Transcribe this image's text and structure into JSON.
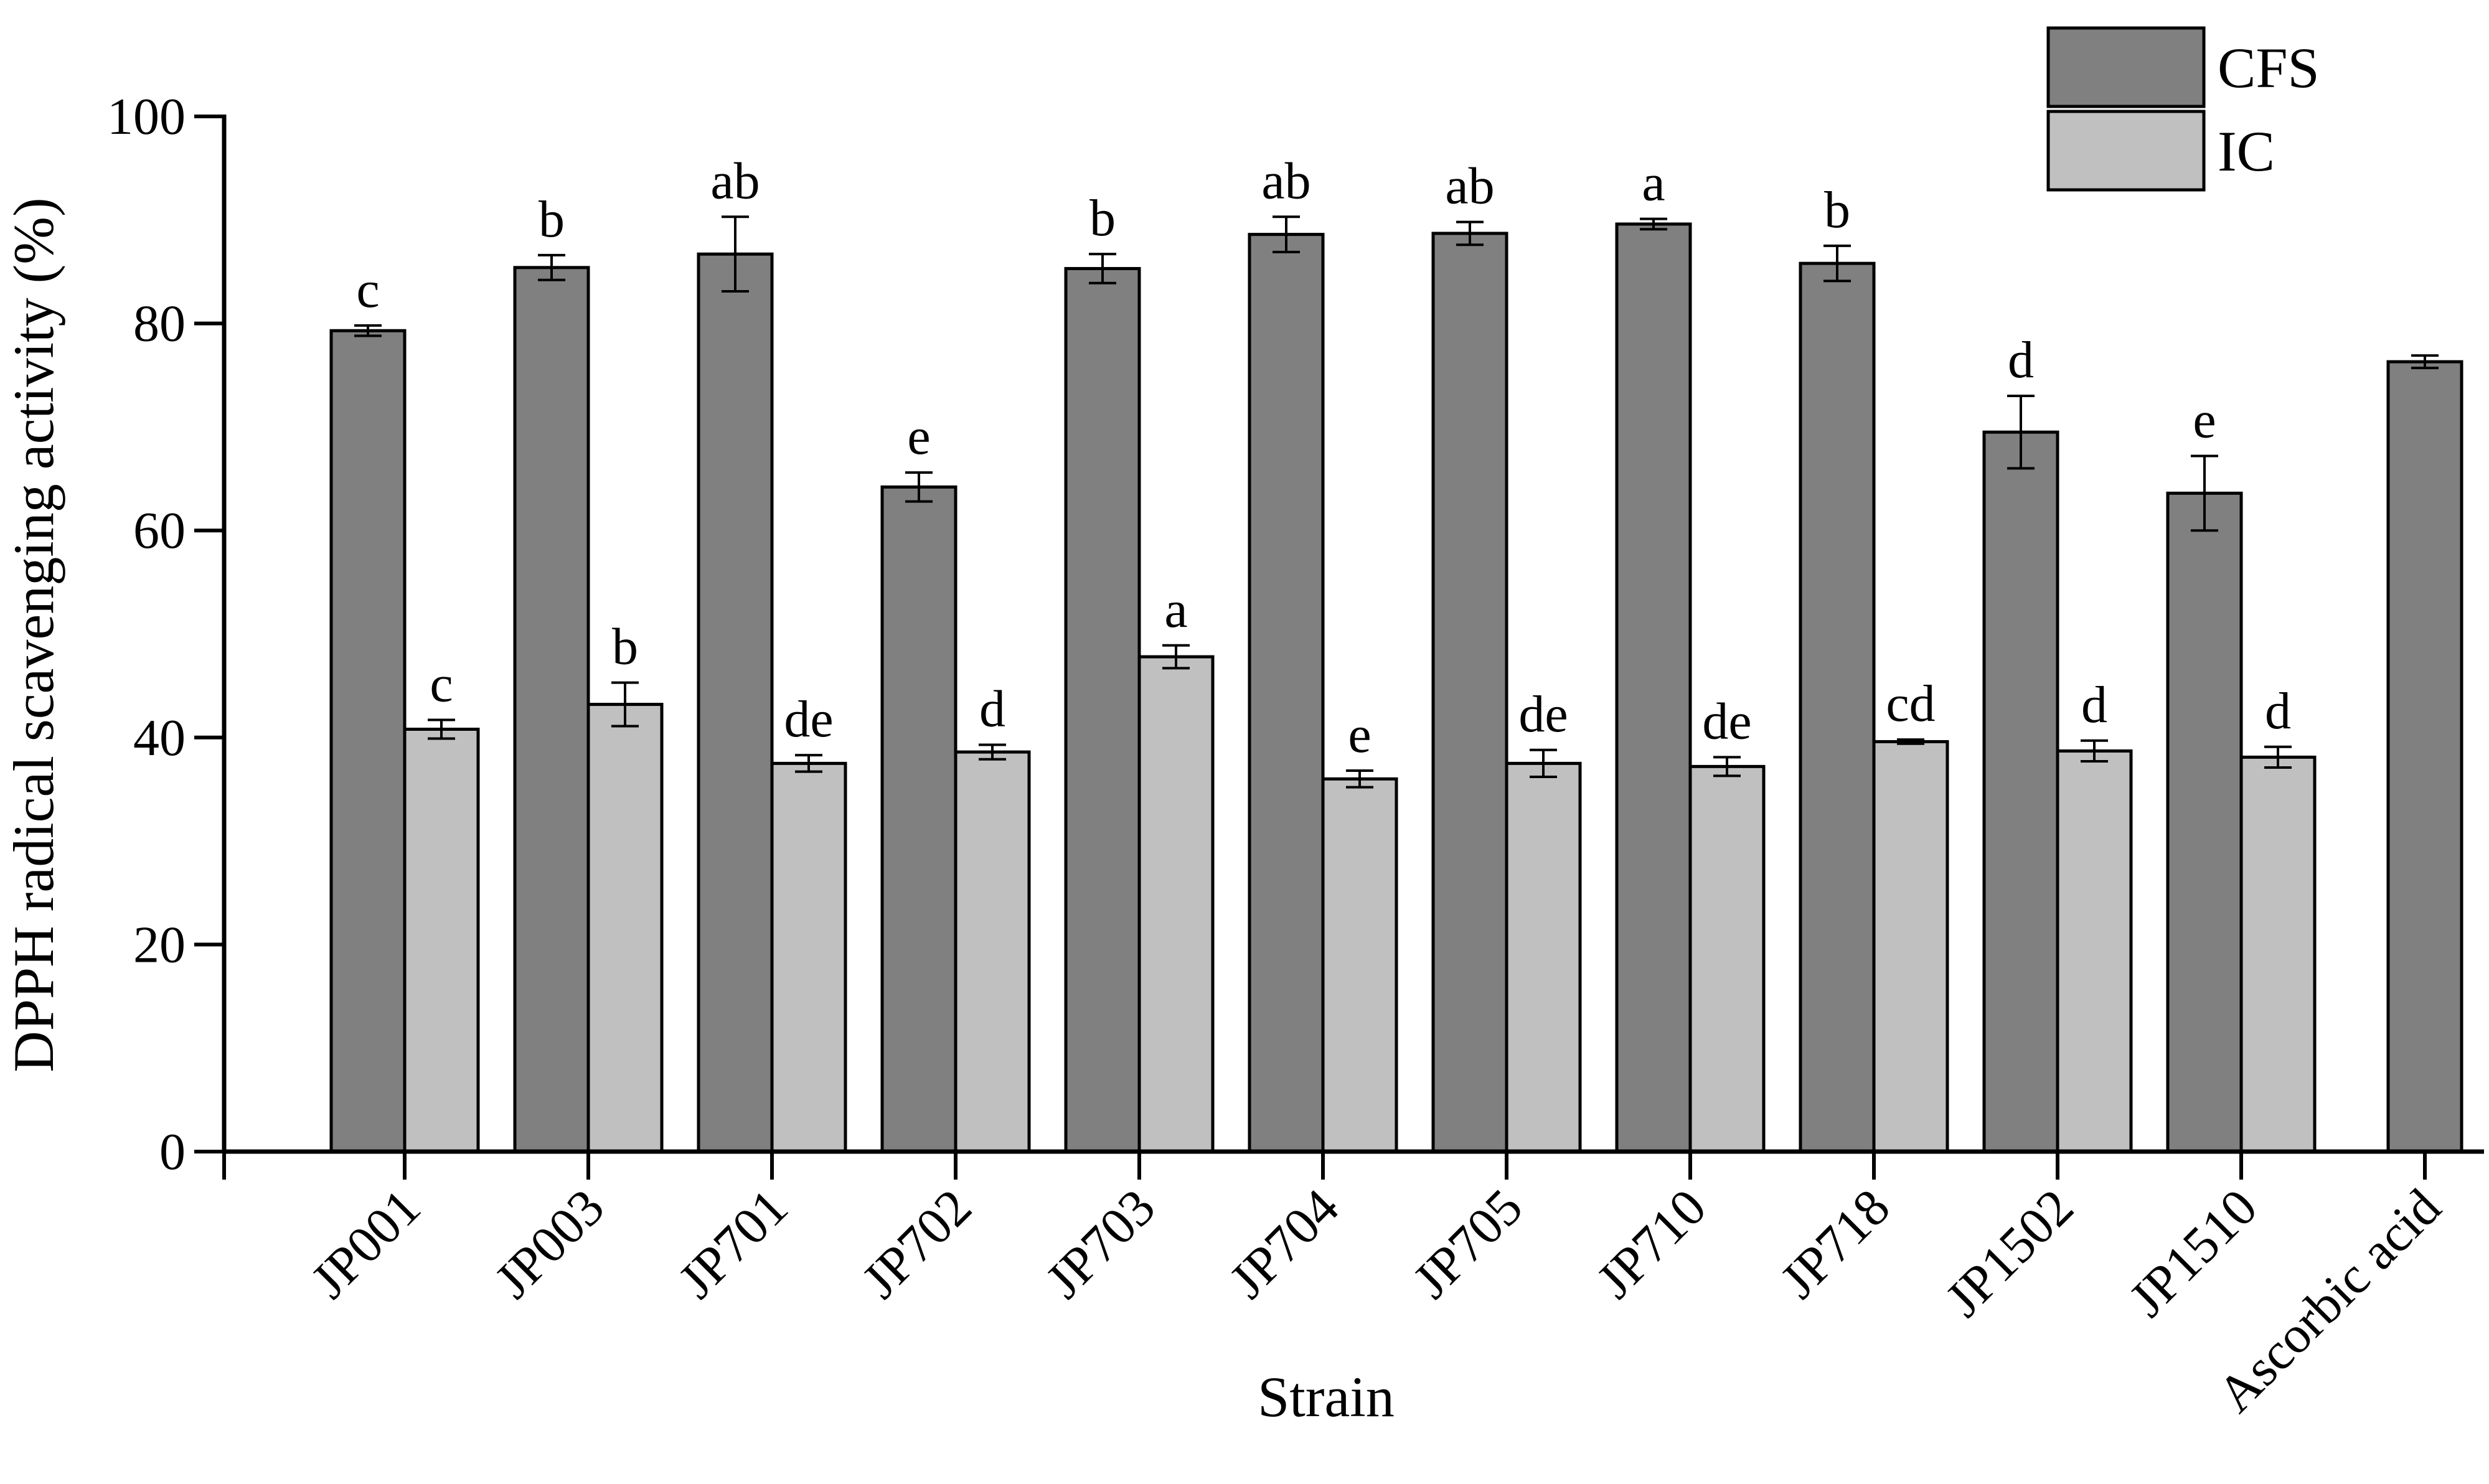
{
  "chart_data": {
    "type": "bar",
    "title": "",
    "xlabel": "Strain",
    "ylabel": "DPPH radical scavenging activity (%)",
    "ylim": [
      0,
      100
    ],
    "yticks": [
      0,
      20,
      40,
      60,
      80,
      100
    ],
    "grid": false,
    "legend_position": "top-right",
    "categories": [
      "JP001",
      "JP003",
      "JP701",
      "JP702",
      "JP703",
      "JP704",
      "JP705",
      "JP710",
      "JP718",
      "JP1502",
      "JP1510",
      "Ascorbic acid"
    ],
    "series": [
      {
        "name": "CFS",
        "color": "#808080",
        "values": [
          79.3,
          85.4,
          86.7,
          64.2,
          85.3,
          88.6,
          88.7,
          89.6,
          85.8,
          69.5,
          63.6,
          76.3
        ],
        "errors": [
          0.5,
          1.2,
          3.6,
          1.4,
          1.4,
          1.7,
          1.1,
          0.5,
          1.7,
          3.5,
          3.6,
          0.6
        ],
        "labels": [
          "c",
          "b",
          "ab",
          "e",
          "b",
          "ab",
          "ab",
          "a",
          "b",
          "d",
          "e",
          ""
        ]
      },
      {
        "name": "IC",
        "color": "#c0c0c0",
        "values": [
          40.8,
          43.2,
          37.5,
          38.6,
          47.8,
          36.0,
          37.5,
          37.2,
          39.6,
          38.7,
          38.1,
          null
        ],
        "errors": [
          0.9,
          2.1,
          0.8,
          0.7,
          1.1,
          0.8,
          1.3,
          0.9,
          0.2,
          1.0,
          1.0,
          null
        ],
        "labels": [
          "c",
          "b",
          "de",
          "d",
          "a",
          "e",
          "de",
          "de",
          "cd",
          "d",
          "d",
          ""
        ]
      }
    ]
  }
}
